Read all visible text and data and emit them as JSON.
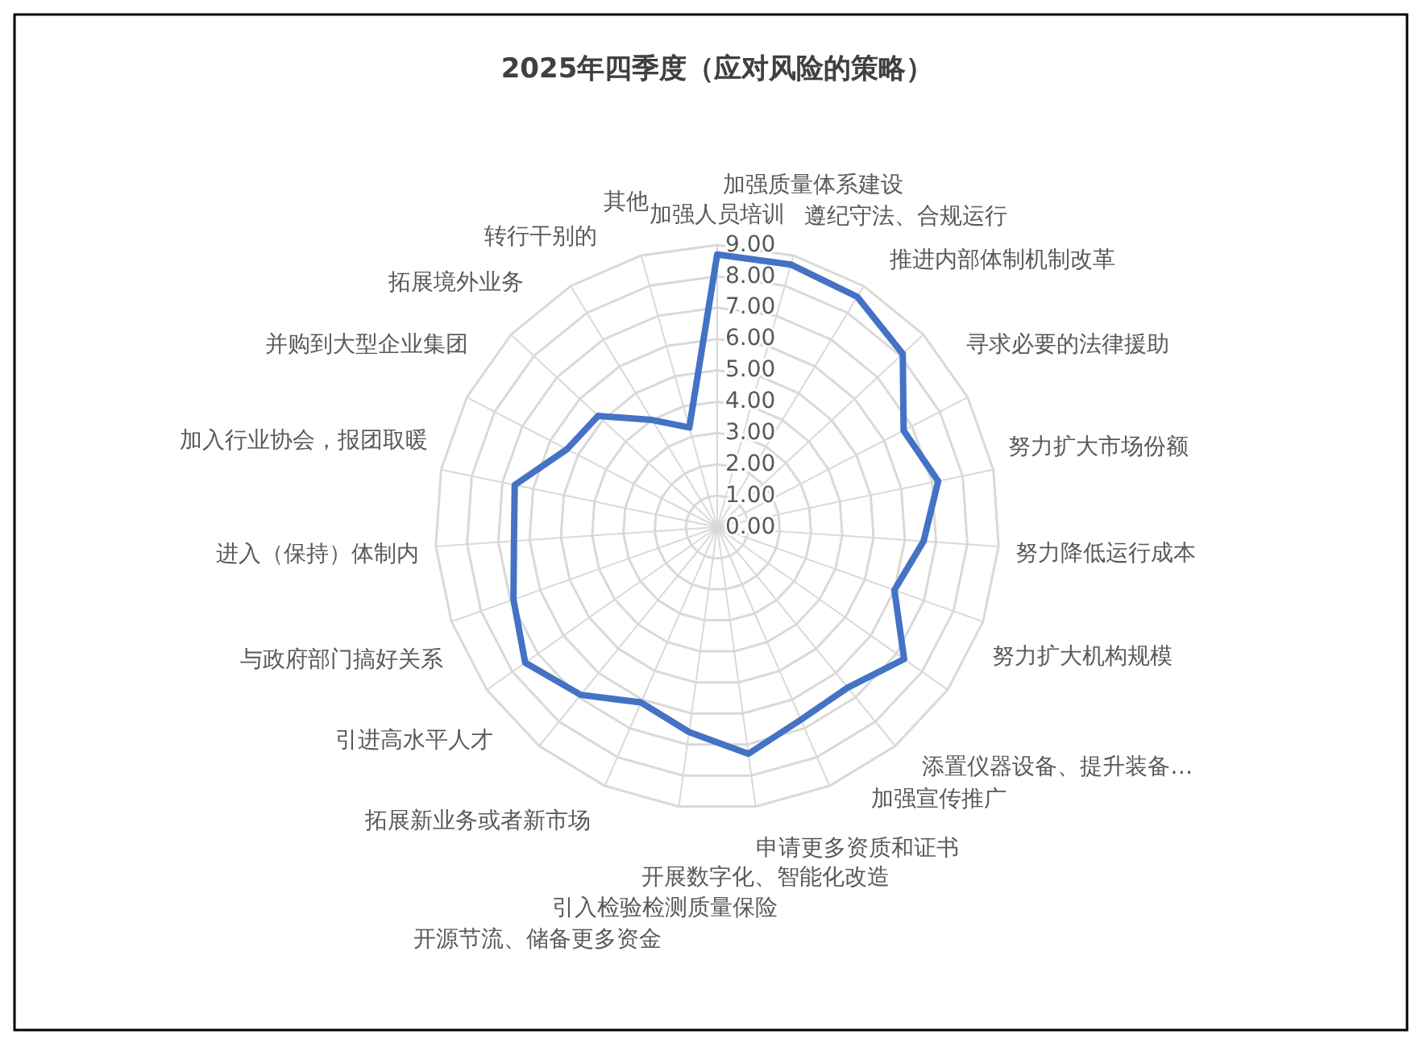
{
  "chart_data": {
    "type": "radar",
    "title": "2025年四季度（应对风险的策略）",
    "categories": [
      "加强人员培训",
      "加强质量体系建设",
      "遵纪守法、合规运行",
      "推进内部体制机制改革",
      "寻求必要的法律援助",
      "努力扩大市场份额",
      "努力降低运行成本",
      "努力扩大机构规模",
      "添置仪器设备、提升装备…",
      "加强宣传推广",
      "申请更多资质和证书",
      "开展数字化、智能化改造",
      "引入检验检测质量保险",
      "开源节流、储备更多资金",
      "拓展新业务或者新市场",
      "引进高水平人才",
      "与政府部门搞好关系",
      "进入（保持）体制内",
      "加入行业协会，报团取暖",
      "并购到大型企业集团",
      "拓展境外业务",
      "转行干别的",
      "其他"
    ],
    "series": [
      {
        "color": "#4472c4",
        "values": [
          8.7,
          8.7,
          8.6,
          8.1,
          6.7,
          7.2,
          6.6,
          6.0,
          7.3,
          6.6,
          6.7,
          7.3,
          6.6,
          6.1,
          6.9,
          7.5,
          6.9,
          6.5,
          6.6,
          5.4,
          5.2,
          4.0,
          3.3
        ]
      }
    ],
    "ylim": [
      0,
      9
    ],
    "yticks": [
      {
        "value": 0,
        "label": "0.00"
      },
      {
        "value": 1,
        "label": "1.00"
      },
      {
        "value": 2,
        "label": "2.00"
      },
      {
        "value": 3,
        "label": "3.00"
      },
      {
        "value": 4,
        "label": "4.00"
      },
      {
        "value": 5,
        "label": "5.00"
      },
      {
        "value": 6,
        "label": "6.00"
      },
      {
        "value": 7,
        "label": "7.00"
      },
      {
        "value": 8,
        "label": "8.00"
      },
      {
        "value": 9,
        "label": "9.00"
      }
    ],
    "grid": true,
    "line_style": "solid",
    "marker": "none"
  }
}
